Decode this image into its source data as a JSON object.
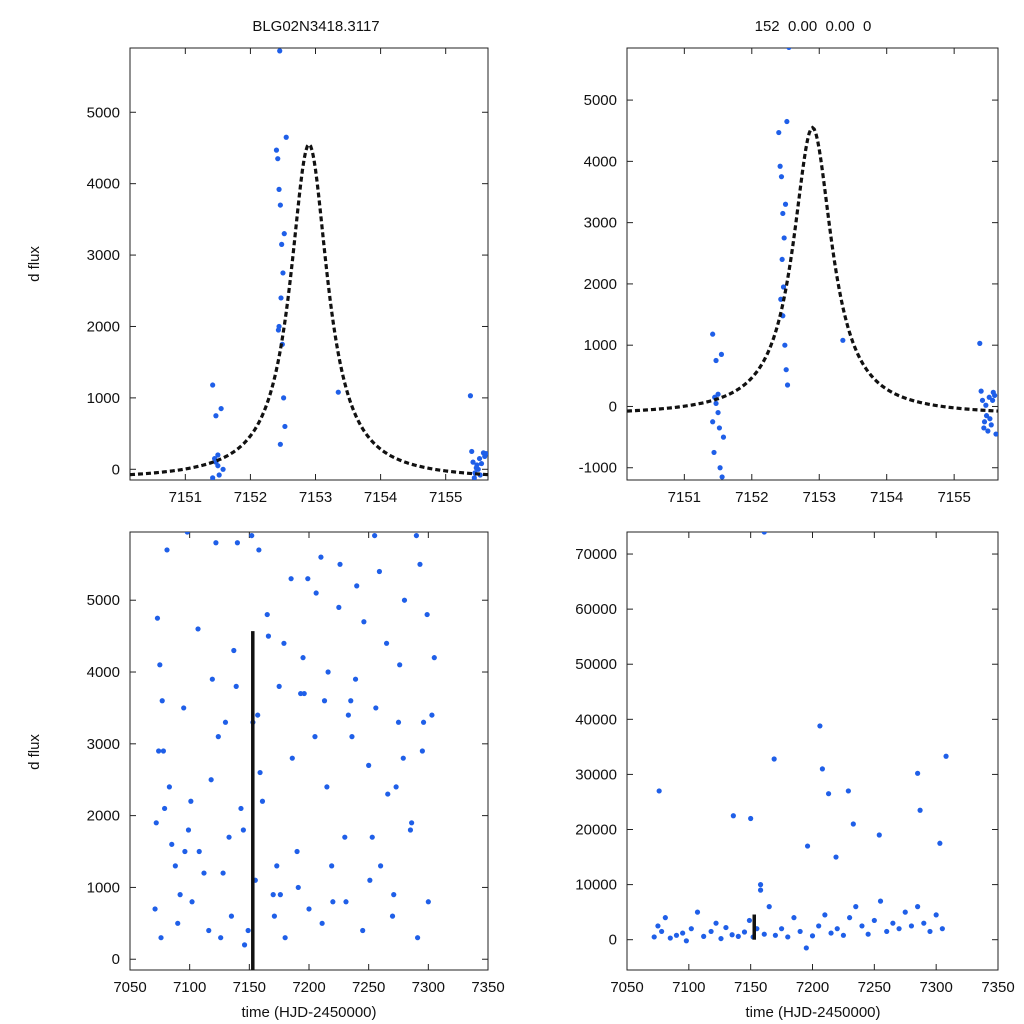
{
  "chart_data": [
    {
      "id": "top-left",
      "type": "scatter",
      "title": "BLG02N3418.3117",
      "xlabel": "",
      "ylabel": "d flux",
      "xlim": [
        7150.15,
        7155.65
      ],
      "ylim": [
        -150,
        5900
      ],
      "xticks": [
        7151,
        7152,
        7153,
        7154,
        7155
      ],
      "yticks": [
        0,
        1000,
        2000,
        3000,
        4000,
        5000
      ],
      "model": {
        "t0": 7152.9,
        "amp": 4700,
        "width": 0.35,
        "base": -150,
        "style": "dashed"
      },
      "x": [
        7151.42,
        7151.45,
        7151.47,
        7151.5,
        7151.52,
        7151.55,
        7151.58,
        7151.47,
        7151.5,
        7151.42,
        7152.4,
        7152.42,
        7152.44,
        7152.46,
        7152.48,
        7152.5,
        7152.52,
        7152.55,
        7152.45,
        7152.47,
        7152.43,
        7152.49,
        7152.51,
        7152.53,
        7152.46,
        7152.44,
        7153.35,
        7155.38,
        7155.4,
        7155.42,
        7155.45,
        7155.48,
        7155.5,
        7155.52,
        7155.55,
        7155.58,
        7155.6,
        7155.62,
        7155.44,
        7155.47,
        7155.53
      ],
      "y": [
        1180,
        150,
        100,
        50,
        -80,
        850,
        0,
        750,
        200,
        -120,
        4470,
        4350,
        3920,
        3700,
        3150,
        2750,
        3300,
        4650,
        5860,
        2400,
        1950,
        1750,
        1000,
        600,
        350,
        2000,
        1080,
        1030,
        250,
        100,
        -50,
        60,
        0,
        150,
        80,
        230,
        180,
        220,
        -120,
        20,
        -80
      ]
    },
    {
      "id": "top-right",
      "type": "scatter",
      "title": "152  0.00  0.00  0",
      "xlabel": "",
      "ylabel": "",
      "xlim": [
        7150.15,
        7155.65
      ],
      "ylim": [
        -1200,
        5850
      ],
      "xticks": [
        7151,
        7152,
        7153,
        7154,
        7155
      ],
      "yticks": [
        -1000,
        0,
        1000,
        2000,
        3000,
        4000,
        5000
      ],
      "model": {
        "t0": 7152.9,
        "amp": 4700,
        "width": 0.35,
        "base": -150,
        "style": "dashed"
      },
      "x": [
        7151.42,
        7151.45,
        7151.47,
        7151.5,
        7151.52,
        7151.55,
        7151.58,
        7151.47,
        7151.5,
        7151.42,
        7151.44,
        7151.53,
        7151.56,
        7152.4,
        7152.42,
        7152.44,
        7152.46,
        7152.48,
        7152.5,
        7152.52,
        7152.55,
        7152.45,
        7152.47,
        7152.43,
        7152.49,
        7152.51,
        7152.53,
        7152.46,
        7153.35,
        7155.38,
        7155.4,
        7155.42,
        7155.45,
        7155.48,
        7155.5,
        7155.52,
        7155.55,
        7155.58,
        7155.6,
        7155.62,
        7155.44,
        7155.47,
        7155.53,
        7155.57
      ],
      "y": [
        1180,
        150,
        50,
        -100,
        -350,
        850,
        -500,
        750,
        200,
        -250,
        -750,
        -1000,
        -1150,
        4470,
        3920,
        3750,
        3150,
        2750,
        3300,
        4650,
        5860,
        2400,
        1950,
        1750,
        1000,
        600,
        350,
        1480,
        1080,
        1030,
        250,
        100,
        -250,
        -150,
        -400,
        150,
        -300,
        230,
        180,
        -450,
        -350,
        20,
        -200,
        100
      ]
    },
    {
      "id": "bottom-left",
      "type": "scatter",
      "title": "",
      "xlabel": "time (HJD-2450000)",
      "ylabel": "d flux",
      "xlim": [
        7050,
        7350
      ],
      "ylim": [
        -150,
        5950
      ],
      "xticks": [
        7050,
        7100,
        7150,
        7200,
        7250,
        7300,
        7350
      ],
      "yticks": [
        0,
        1000,
        2000,
        3000,
        4000,
        5000
      ],
      "model": {
        "x": 7152.9,
        "ymin": -150,
        "ymax": 4570,
        "style": "vertical-line"
      },
      "x": [
        7072,
        7075,
        7078,
        7081,
        7085,
        7090,
        7095,
        7098,
        7102,
        7107,
        7112,
        7118,
        7122,
        7126,
        7130,
        7135,
        7140,
        7145,
        7149,
        7152,
        7155,
        7158,
        7161,
        7165,
        7170,
        7175,
        7180,
        7185,
        7190,
        7195,
        7200,
        7205,
        7210,
        7215,
        7220,
        7225,
        7230,
        7235,
        7240,
        7245,
        7250,
        7255,
        7260,
        7265,
        7270,
        7275,
        7280,
        7285,
        7290,
        7295,
        7300,
        7305,
        7073,
        7077,
        7083,
        7096,
        7101,
        7119,
        7128,
        7137,
        7143,
        7157,
        7166,
        7176,
        7186,
        7196,
        7206,
        7216,
        7226,
        7236,
        7246,
        7256,
        7266,
        7276,
        7286,
        7296,
        7303,
        7074,
        7079,
        7099,
        7124,
        7139,
        7159,
        7179,
        7199,
        7219,
        7239,
        7259,
        7279,
        7299,
        7088,
        7108,
        7133,
        7153,
        7173,
        7193,
        7213,
        7233,
        7253,
        7273,
        7293,
        7071,
        7076,
        7092,
        7116,
        7146,
        7171,
        7191,
        7211,
        7231,
        7251,
        7271,
        7291
      ],
      "y": [
        1900,
        4100,
        2900,
        5700,
        1600,
        500,
        3500,
        5950,
        800,
        4600,
        1200,
        2500,
        5800,
        300,
        3300,
        600,
        5800,
        1800,
        400,
        5900,
        1100,
        5700,
        2200,
        4800,
        900,
        3800,
        300,
        5300,
        1500,
        4200,
        700,
        3100,
        5600,
        2400,
        800,
        4900,
        1700,
        3600,
        5200,
        400,
        2700,
        5900,
        1300,
        4400,
        600,
        3300,
        5000,
        1800,
        5900,
        2900,
        800,
        4200,
        4750,
        3600,
        2400,
        1500,
        2200,
        3900,
        1200,
        4300,
        2100,
        3400,
        4500,
        900,
        2800,
        3700,
        5100,
        4000,
        5500,
        3100,
        4700,
        3500,
        2300,
        4100,
        1900,
        3300,
        3400,
        2900,
        2100,
        1800,
        3100,
        3800,
        2600,
        4400,
        5300,
        1300,
        3900,
        5400,
        2800,
        4800,
        1300,
        1500,
        1700,
        3300,
        1300,
        3700,
        3600,
        3400,
        1700,
        2400,
        5500,
        700,
        300,
        900,
        400,
        200,
        600,
        1000,
        500,
        800,
        1100,
        900,
        300
      ]
    },
    {
      "id": "bottom-right",
      "type": "scatter",
      "title": "",
      "xlabel": "time (HJD-2450000)",
      "ylabel": "",
      "xlim": [
        7050,
        7350
      ],
      "ylim": [
        -5500,
        74000
      ],
      "xticks": [
        7050,
        7100,
        7150,
        7200,
        7250,
        7300,
        7350
      ],
      "yticks": [
        0,
        10000,
        20000,
        30000,
        40000,
        50000,
        60000,
        70000
      ],
      "model": {
        "x": 7152.9,
        "ymin": 0,
        "ymax": 4570,
        "style": "vertical-line"
      },
      "x": [
        7072,
        7075,
        7078,
        7081,
        7085,
        7090,
        7095,
        7098,
        7102,
        7107,
        7112,
        7118,
        7122,
        7126,
        7130,
        7135,
        7140,
        7145,
        7149,
        7152,
        7155,
        7158,
        7161,
        7165,
        7170,
        7175,
        7180,
        7185,
        7190,
        7195,
        7200,
        7205,
        7210,
        7215,
        7220,
        7225,
        7230,
        7235,
        7240,
        7245,
        7250,
        7255,
        7260,
        7265,
        7270,
        7275,
        7280,
        7285,
        7290,
        7295,
        7300,
        7305,
        7076,
        7150,
        7161,
        7169,
        7206,
        7208,
        7213,
        7229,
        7233,
        7285,
        7287,
        7308,
        7158,
        7136,
        7196,
        7219,
        7254,
        7303
      ],
      "y": [
        500,
        2500,
        1500,
        4000,
        300,
        800,
        1200,
        -200,
        2000,
        5000,
        600,
        1500,
        3000,
        200,
        2200,
        900,
        600,
        1400,
        3500,
        500,
        2000,
        9000,
        1000,
        6000,
        800,
        2000,
        500,
        4000,
        1500,
        -1500,
        700,
        2500,
        4500,
        1200,
        2000,
        800,
        4000,
        6000,
        2500,
        1000,
        3500,
        7000,
        1500,
        3000,
        2000,
        5000,
        2500,
        6000,
        3000,
        1500,
        4500,
        2000,
        27000,
        22000,
        74000,
        32800,
        38800,
        31000,
        26500,
        27000,
        21000,
        30200,
        23500,
        33300,
        10000,
        22500,
        17000,
        15000,
        19000,
        17500
      ]
    }
  ]
}
